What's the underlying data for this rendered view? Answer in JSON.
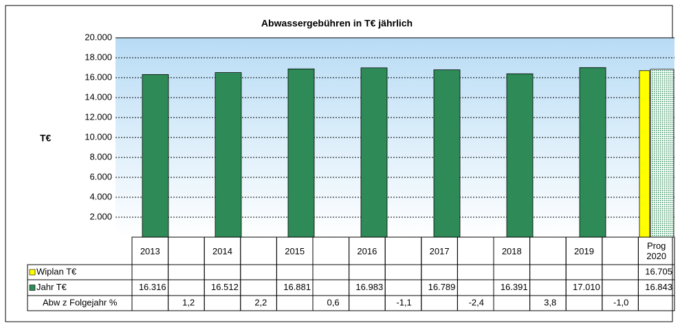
{
  "chart_data": {
    "type": "bar",
    "title": "Abwassergebühren in T€ jährlich",
    "y_label": "T€",
    "categories": [
      "2013",
      "2014",
      "2015",
      "2016",
      "2017",
      "2018",
      "2019",
      "Prog 2020"
    ],
    "series": [
      {
        "name": "Wiplan T€",
        "color": "#ffff00",
        "values": [
          null,
          null,
          null,
          null,
          null,
          null,
          null,
          16705
        ],
        "value_labels": [
          null,
          null,
          null,
          null,
          null,
          null,
          null,
          "16.705"
        ]
      },
      {
        "name": "Jahr T€",
        "color": "#2e8b57",
        "values": [
          16316,
          16512,
          16881,
          16983,
          16789,
          16391,
          17010,
          16843
        ],
        "value_labels": [
          "16.316",
          "16.512",
          "16.881",
          "16.983",
          "16.789",
          "16.391",
          "17.010",
          "16.843"
        ]
      }
    ],
    "deviation": {
      "name": "Abw z Folgejahr %",
      "values": [
        1.2,
        2.2,
        0.6,
        -1.1,
        -2.4,
        3.8,
        -1.0
      ],
      "value_labels": [
        "1,2",
        "2,2",
        "0,6",
        "-1,1",
        "-2,4",
        "3,8",
        "-1,0"
      ]
    },
    "ylim": [
      0,
      20000
    ],
    "yticks": [
      {
        "value": 2000,
        "label": "2.000"
      },
      {
        "value": 4000,
        "label": "4.000"
      },
      {
        "value": 6000,
        "label": "6.000"
      },
      {
        "value": 8000,
        "label": "8.000"
      },
      {
        "value": 10000,
        "label": "10.000"
      },
      {
        "value": 12000,
        "label": "12.000"
      },
      {
        "value": 14000,
        "label": "14.000"
      },
      {
        "value": 16000,
        "label": "16.000"
      },
      {
        "value": 18000,
        "label": "18.000"
      },
      {
        "value": 20000,
        "label": "20.000"
      }
    ],
    "grid": true
  }
}
